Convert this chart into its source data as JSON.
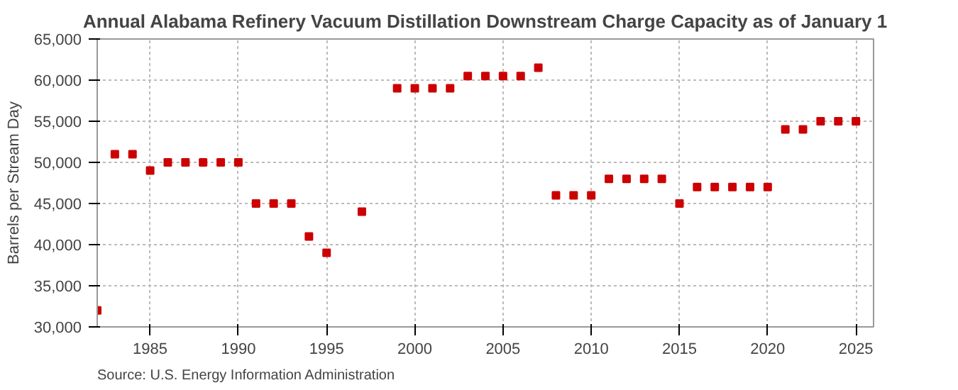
{
  "chart_data": {
    "type": "scatter",
    "title": "Annual Alabama Refinery Vacuum Distillation Downstream Charge Capacity as of January 1",
    "ylabel": "Barrels per Stream Day",
    "annotations": [
      "Source: U.S. Energy Information Administration"
    ],
    "x": [
      1982,
      1983,
      1984,
      1985,
      1986,
      1987,
      1988,
      1989,
      1990,
      1991,
      1992,
      1993,
      1994,
      1995,
      1997,
      1999,
      2000,
      2001,
      2002,
      2003,
      2004,
      2005,
      2006,
      2007,
      2008,
      2009,
      2010,
      2011,
      2012,
      2013,
      2014,
      2015,
      2016,
      2017,
      2018,
      2019,
      2020,
      2021,
      2022,
      2023,
      2024,
      2025
    ],
    "series": [
      {
        "color": "#cc0000",
        "values": [
          32000,
          51000,
          51000,
          49000,
          50000,
          50000,
          50000,
          50000,
          50000,
          45000,
          45000,
          45000,
          41000,
          39000,
          44000,
          59000,
          59000,
          59000,
          59000,
          60500,
          60500,
          60500,
          60500,
          61500,
          46000,
          46000,
          46000,
          48000,
          48000,
          48000,
          48000,
          45000,
          47000,
          47000,
          47000,
          47000,
          47000,
          54000,
          54000,
          55000,
          55000,
          55000
        ]
      }
    ],
    "xlim": [
      1982,
      2026
    ],
    "xticks": [
      1985,
      1990,
      1995,
      2000,
      2005,
      2010,
      2015,
      2020,
      2025
    ],
    "ylim": [
      30000,
      65000
    ],
    "yticks": [
      {
        "value": 30000,
        "label": "30,000"
      },
      {
        "value": 35000,
        "label": "35,000"
      },
      {
        "value": 40000,
        "label": "40,000"
      },
      {
        "value": 45000,
        "label": "45,000"
      },
      {
        "value": 50000,
        "label": "50,000"
      },
      {
        "value": 55000,
        "label": "55,000"
      },
      {
        "value": 60000,
        "label": "60,000"
      },
      {
        "value": 65000,
        "label": "65,000"
      }
    ],
    "grid": true,
    "marker": "square"
  }
}
